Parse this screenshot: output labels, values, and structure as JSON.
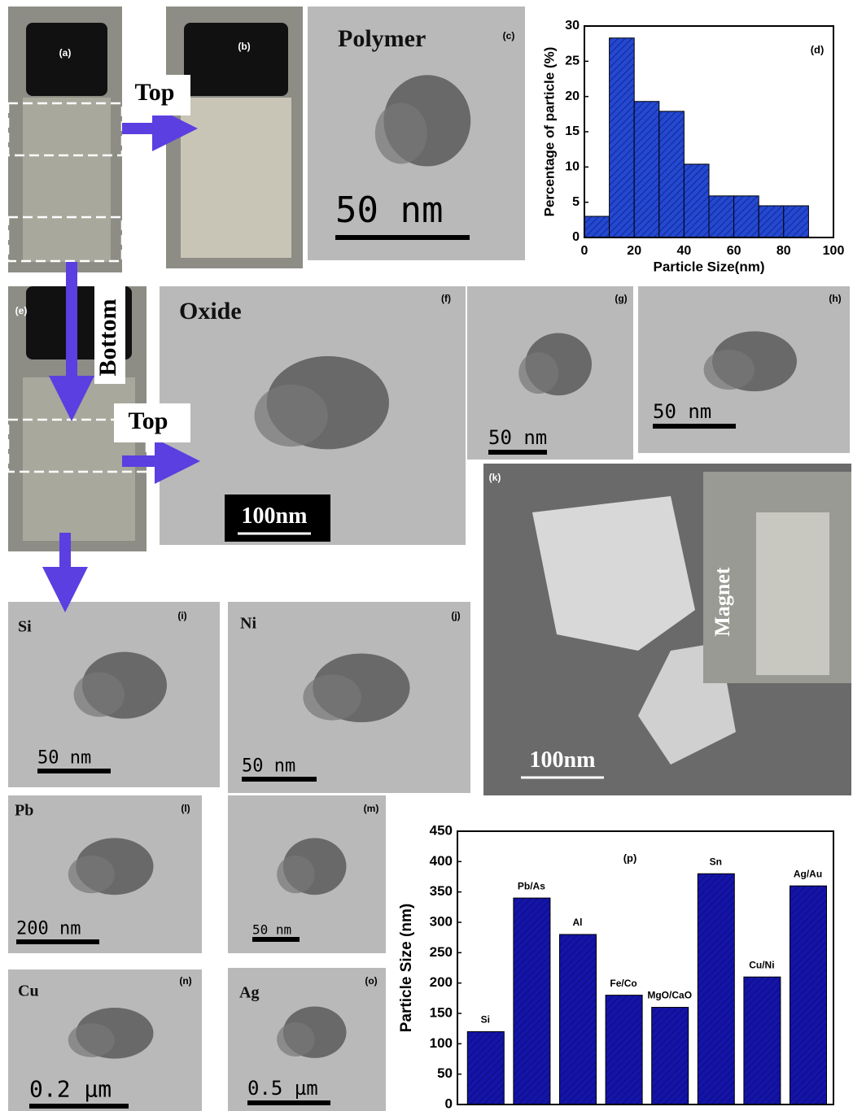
{
  "figure": {
    "panels": [
      {
        "label": "(a)"
      },
      {
        "label": "(b)"
      },
      {
        "label": "(c)",
        "title": "Polymer",
        "scale_bar": "50 nm"
      },
      {
        "label": "(e)"
      },
      {
        "label": "(f)",
        "title": "Oxide",
        "scale_bar": "100nm"
      },
      {
        "label": "(g)",
        "scale_bar": "50 nm"
      },
      {
        "label": "(h)",
        "scale_bar": "50 nm"
      },
      {
        "label": "(k)",
        "title": "Magnet",
        "scale_bar": "100nm"
      },
      {
        "label": "(i)",
        "title": "Si",
        "scale_bar": "50 nm"
      },
      {
        "label": "(j)",
        "title": "Ni",
        "scale_bar": "50 nm"
      },
      {
        "label": "(l)",
        "title": "Pb",
        "scale_bar": "200 nm"
      },
      {
        "label": "(m)",
        "scale_bar": "50 nm"
      },
      {
        "label": "(n)",
        "title": "Cu",
        "scale_bar": "0.2 µm"
      },
      {
        "label": "(o)",
        "title": "Ag",
        "scale_bar": "0.5 µm"
      }
    ],
    "arrows": [
      {
        "label": "Top"
      },
      {
        "label": "Bottom"
      },
      {
        "label": "Top"
      }
    ]
  },
  "chart_data": [
    {
      "type": "histogram",
      "annotation": "(d)",
      "x_label": "Particle Size(nm)",
      "y_label": "Percentage of particle (%)",
      "bins": [
        0,
        10,
        20,
        30,
        40,
        50,
        60,
        70,
        80,
        90
      ],
      "values": [
        3,
        28.3,
        19.3,
        17.9,
        10.4,
        5.9,
        5.9,
        4.5,
        4.5
      ],
      "color": "#1f3fc8",
      "xlim": [
        0,
        100
      ],
      "xticks": [
        0,
        20,
        40,
        60,
        80,
        100
      ],
      "ylim": [
        0,
        30
      ],
      "yticks": [
        0,
        5,
        10,
        15,
        20,
        25,
        30
      ]
    },
    {
      "type": "bar",
      "annotation": "(p)",
      "y_label": "Particle Size (nm)",
      "categories": [
        "Si",
        "Pb/As",
        "Al",
        "Fe/Co",
        "MgO/CaO",
        "Sn",
        "Cu/Ni",
        "Ag/Au"
      ],
      "values": [
        120,
        340,
        280,
        180,
        160,
        380,
        210,
        360
      ],
      "color": "#1414a8",
      "ylim": [
        0,
        450
      ],
      "yticks": [
        0,
        50,
        100,
        150,
        200,
        250,
        300,
        350,
        400,
        450
      ]
    }
  ]
}
